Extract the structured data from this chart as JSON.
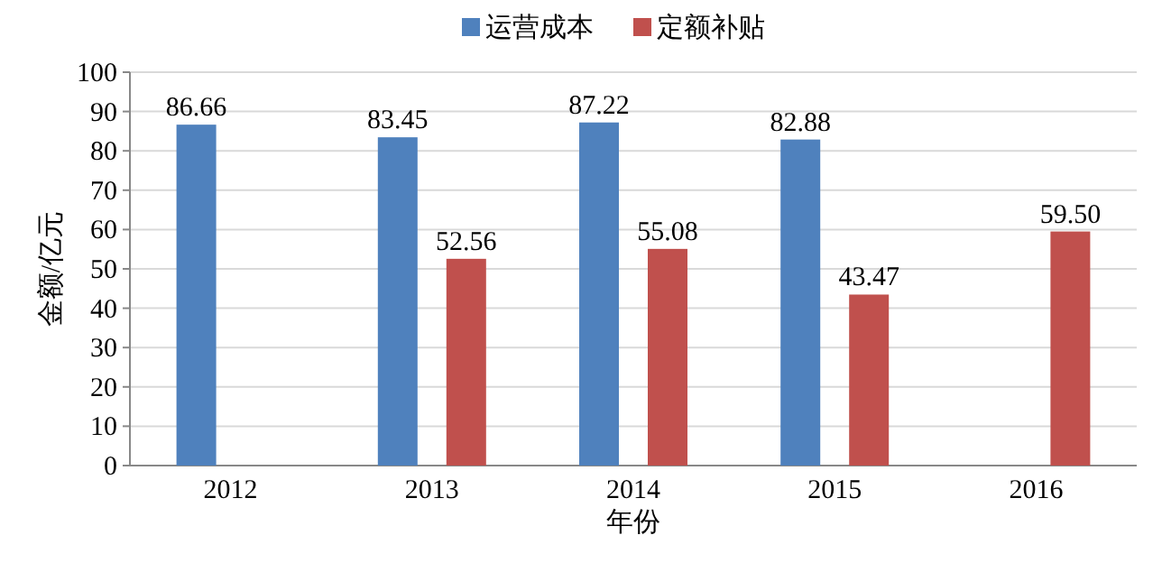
{
  "chart_data": {
    "type": "bar",
    "xlabel": "年份",
    "ylabel": "金额/亿元",
    "categories": [
      "2012",
      "2013",
      "2014",
      "2015",
      "2016"
    ],
    "series": [
      {
        "name": "运营成本",
        "color": "#4f81bd",
        "values": [
          86.66,
          83.45,
          87.22,
          82.88,
          null
        ],
        "value_labels": [
          "86.66",
          "83.45",
          "87.22",
          "82.88",
          null
        ]
      },
      {
        "name": "定额补贴",
        "color": "#c0504d",
        "values": [
          null,
          52.56,
          55.08,
          43.47,
          59.5
        ],
        "value_labels": [
          null,
          "52.56",
          "55.08",
          "43.47",
          "59.50"
        ]
      }
    ],
    "ylim": [
      0,
      100
    ],
    "yticks": [
      0,
      10,
      20,
      30,
      40,
      50,
      60,
      70,
      80,
      90,
      100
    ],
    "grid": "y",
    "legend": "top"
  }
}
